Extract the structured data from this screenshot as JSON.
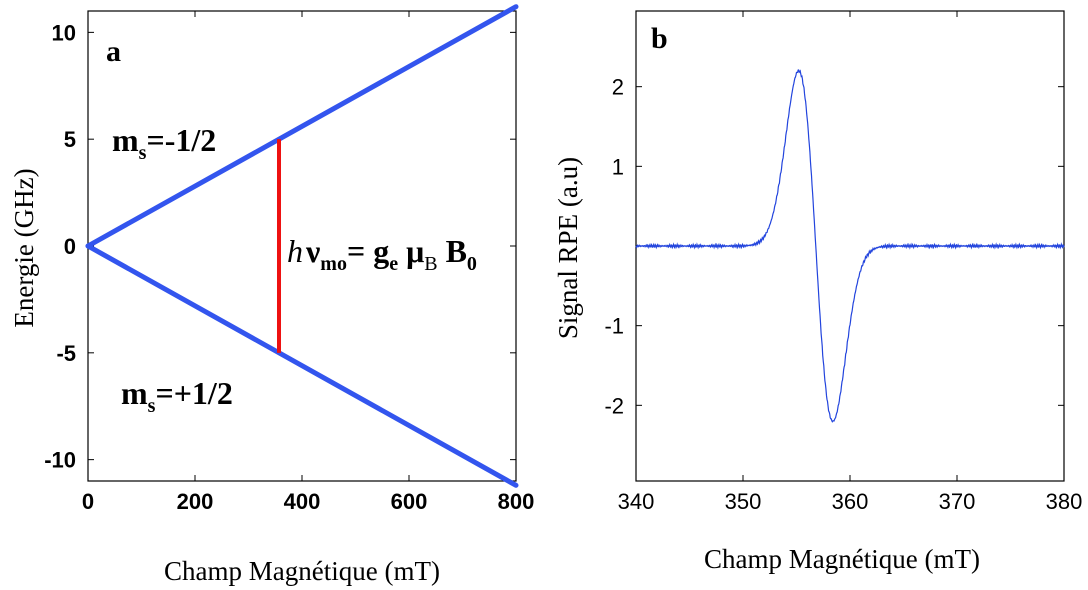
{
  "colors": {
    "line": "#3355ee",
    "transition": "#ee1111",
    "signal": "#2244dd"
  },
  "chart_data": [
    {
      "type": "line",
      "panel_label": "a",
      "xlabel": "Champ Magnétique (mT)",
      "ylabel": "Energie (GHz)",
      "xlim": [
        0,
        800
      ],
      "ylim": [
        -11,
        11
      ],
      "xticks": [
        0,
        200,
        400,
        600,
        800
      ],
      "yticks": [
        10,
        5,
        0,
        -5,
        -10
      ],
      "series": [
        {
          "name": "m_s=-1/2",
          "x": [
            0,
            800
          ],
          "y": [
            0,
            11.2
          ]
        },
        {
          "name": "m_s=+1/2",
          "x": [
            0,
            800
          ],
          "y": [
            0,
            -11.2
          ]
        }
      ],
      "transition": {
        "x": 357,
        "y_from": -5,
        "y_to": 5
      },
      "annotations": {
        "ms_upper": {
          "base": "m",
          "sub": "s",
          "rest": "=-1/2"
        },
        "ms_lower": {
          "base": "m",
          "sub": "s",
          "rest": "=+1/2"
        },
        "resonance": {
          "h": "h",
          "nu": "ν",
          "nu_sub": "mo",
          "eq": "= g",
          "g_sub": "e",
          "mu": "μ",
          "mu_sub": "B",
          "b": "B",
          "b_sub": "0"
        }
      }
    },
    {
      "type": "line",
      "panel_label": "b",
      "xlabel": "Champ Magnétique (mT)",
      "ylabel": "Signal RPE (a.u)",
      "xlim": [
        340,
        380
      ],
      "ylim": [
        -2.95,
        2.95
      ],
      "xticks": [
        340,
        350,
        360,
        370,
        380
      ],
      "yticks": [
        2,
        1,
        -1,
        -2
      ],
      "series": [
        {
          "name": "",
          "center": 356.8,
          "peak_x": 355.2,
          "peak_y": 2.2,
          "trough_x": 358.4,
          "trough_y": -2.2,
          "baseline": 0
        }
      ]
    }
  ]
}
